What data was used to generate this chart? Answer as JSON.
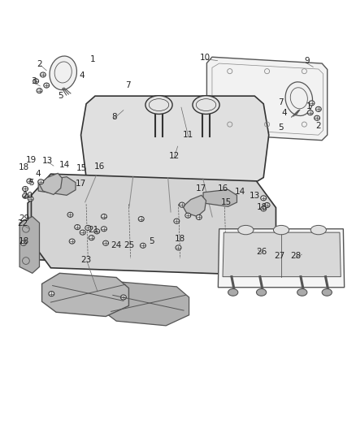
{
  "bg_color": "#ffffff",
  "fig_width": 4.39,
  "fig_height": 5.33,
  "dpi": 100,
  "font_size": 7.5,
  "label_color": "#222222",
  "gray": "#555555",
  "lgray": "#888888",
  "dark": "#333333"
}
